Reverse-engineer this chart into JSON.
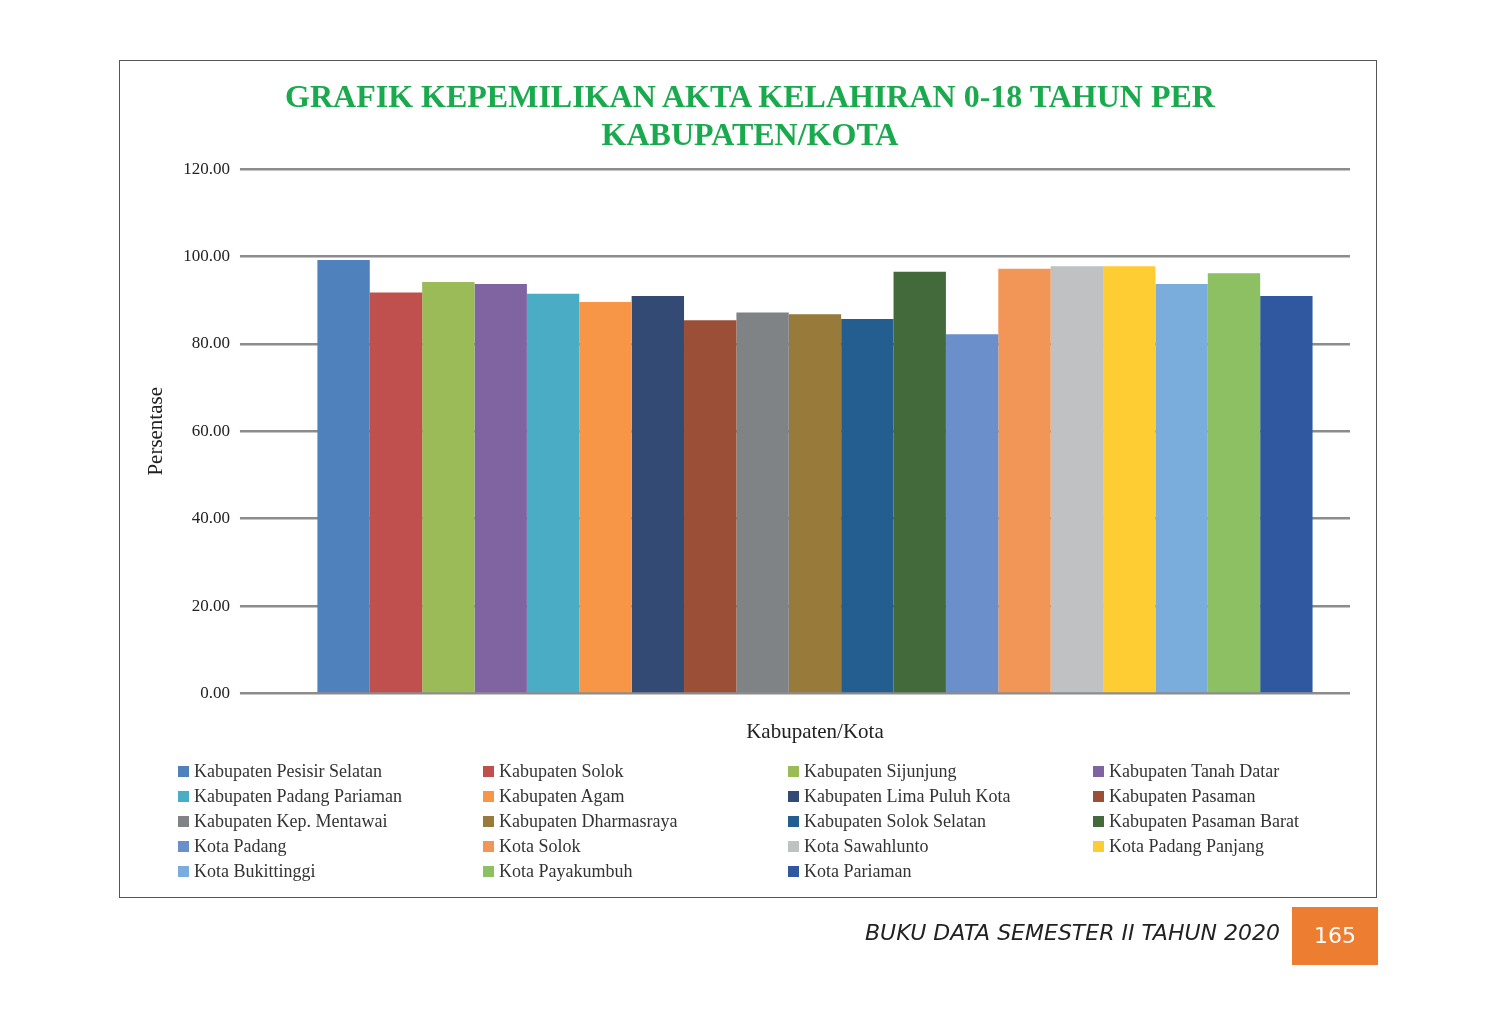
{
  "chart_data": {
    "type": "bar",
    "title": "GRAFIK KEPEMILIKAN AKTA KELAHIRAN 0-18 TAHUN PER KABUPATEN/KOTA",
    "xlabel": "Kabupaten/Kota",
    "ylabel": "Persentase",
    "categories": [
      null
    ],
    "series": [
      {
        "name": "Kabupaten Pesisir Selatan",
        "color": "#4f81bd",
        "values": [
          99.2
        ]
      },
      {
        "name": "Kabupaten Solok",
        "color": "#c0504d",
        "values": [
          91.8
        ]
      },
      {
        "name": "Kabupaten Sijunjung",
        "color": "#9bbb59",
        "values": [
          94.2
        ]
      },
      {
        "name": "Kabupaten Tanah Datar",
        "color": "#8064a2",
        "values": [
          93.7
        ]
      },
      {
        "name": "Kabupaten Padang Pariaman",
        "color": "#4bacc6",
        "values": [
          91.5
        ]
      },
      {
        "name": "Kabupaten Agam",
        "color": "#f79646",
        "values": [
          89.6
        ]
      },
      {
        "name": "Kabupaten Lima Puluh Kota",
        "color": "#334a74",
        "values": [
          91.0
        ]
      },
      {
        "name": "Kabupaten Pasaman",
        "color": "#9b4f36",
        "values": [
          85.4
        ]
      },
      {
        "name": "Kabupaten Kep. Mentawai",
        "color": "#7f8386",
        "values": [
          87.2
        ]
      },
      {
        "name": "Kabupaten Dharmasraya",
        "color": "#987a3a",
        "values": [
          86.8
        ]
      },
      {
        "name": "Kabupaten Solok Selatan",
        "color": "#245e91",
        "values": [
          85.7
        ]
      },
      {
        "name": "Kabupaten Pasaman Barat",
        "color": "#436a3a",
        "values": [
          96.5
        ]
      },
      {
        "name": "Kota Padang",
        "color": "#6b8fca",
        "values": [
          82.2
        ]
      },
      {
        "name": "Kota Solok",
        "color": "#f29658",
        "values": [
          97.2
        ]
      },
      {
        "name": "Kota Sawahlunto",
        "color": "#bfc1c3",
        "values": [
          97.8
        ]
      },
      {
        "name": "Kota Padang Panjang",
        "color": "#fecd33",
        "values": [
          97.8
        ]
      },
      {
        "name": "Kota Bukittinggi",
        "color": "#7aaddc",
        "values": [
          93.7
        ]
      },
      {
        "name": "Kota Payakumbuh",
        "color": "#8cc063",
        "values": [
          96.2
        ]
      },
      {
        "name": "Kota Pariaman",
        "color": "#2f58a0",
        "values": [
          91.0
        ]
      }
    ],
    "ylim": [
      0,
      120
    ],
    "yticks": [
      {
        "value": 0,
        "label": "0.00"
      },
      {
        "value": 20,
        "label": "20.00"
      },
      {
        "value": 40,
        "label": "40.00"
      },
      {
        "value": 60,
        "label": "60.00"
      },
      {
        "value": 80,
        "label": "80.00"
      },
      {
        "value": 100,
        "label": "100.00"
      },
      {
        "value": 120,
        "label": "120.00"
      }
    ],
    "grid": "y",
    "legend": "bottom",
    "annotations": [
      "BUKU DATA SEMESTER II TAHUN 2020",
      "165"
    ]
  }
}
